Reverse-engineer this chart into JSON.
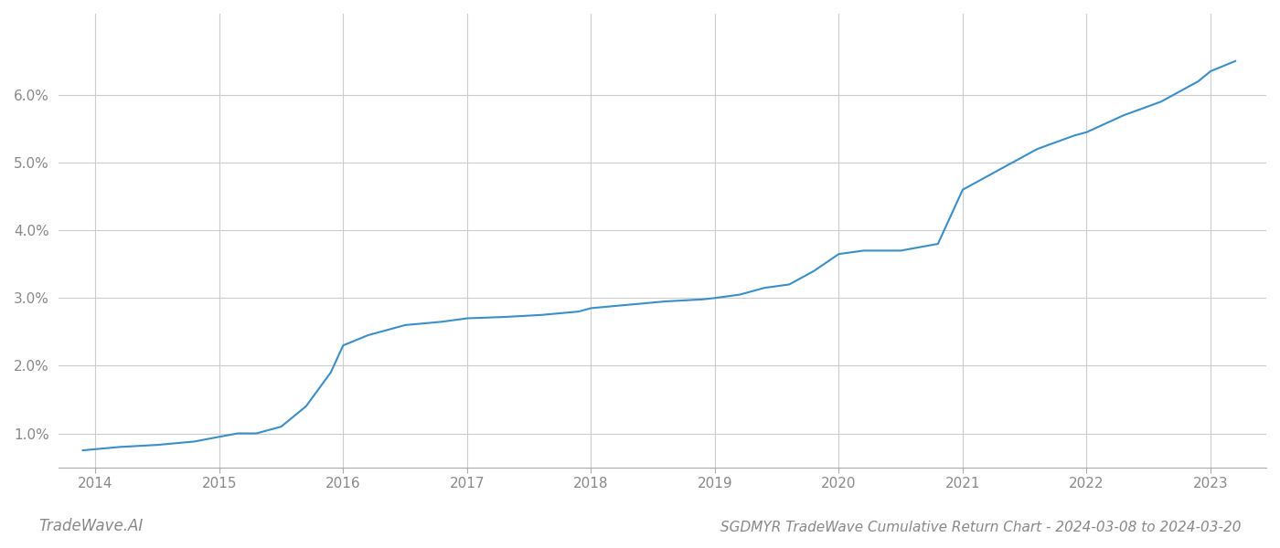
{
  "x_years": [
    2013.9,
    2014.2,
    2014.5,
    2014.8,
    2015.0,
    2015.15,
    2015.3,
    2015.5,
    2015.7,
    2015.9,
    2016.0,
    2016.2,
    2016.5,
    2016.8,
    2017.0,
    2017.3,
    2017.6,
    2017.9,
    2018.0,
    2018.3,
    2018.6,
    2018.9,
    2019.0,
    2019.2,
    2019.4,
    2019.6,
    2019.8,
    2020.0,
    2020.2,
    2020.5,
    2020.8,
    2021.0,
    2021.3,
    2021.6,
    2021.9,
    2022.0,
    2022.3,
    2022.6,
    2022.9,
    2023.0,
    2023.2
  ],
  "y_values": [
    0.0075,
    0.008,
    0.0083,
    0.0088,
    0.0095,
    0.01,
    0.01,
    0.011,
    0.014,
    0.019,
    0.023,
    0.0245,
    0.026,
    0.0265,
    0.027,
    0.0272,
    0.0275,
    0.028,
    0.0285,
    0.029,
    0.0295,
    0.0298,
    0.03,
    0.0305,
    0.0315,
    0.032,
    0.034,
    0.0365,
    0.037,
    0.037,
    0.038,
    0.046,
    0.049,
    0.052,
    0.054,
    0.0545,
    0.057,
    0.059,
    0.062,
    0.0635,
    0.065
  ],
  "line_color": "#3a8fc7",
  "line_width": 1.5,
  "background_color": "#ffffff",
  "grid_color": "#cccccc",
  "title": "SGDMYR TradeWave Cumulative Return Chart - 2024-03-08 to 2024-03-20",
  "watermark": "TradeWave.AI",
  "xlim": [
    2013.7,
    2023.45
  ],
  "ylim": [
    0.005,
    0.072
  ],
  "yticks": [
    0.01,
    0.02,
    0.03,
    0.04,
    0.05,
    0.06
  ],
  "ytick_labels": [
    "1.0%",
    "2.0%",
    "3.0%",
    "4.0%",
    "5.0%",
    "6.0%"
  ],
  "xtick_years": [
    2014,
    2015,
    2016,
    2017,
    2018,
    2019,
    2020,
    2021,
    2022,
    2023
  ],
  "title_fontsize": 11,
  "tick_fontsize": 11,
  "watermark_fontsize": 12
}
